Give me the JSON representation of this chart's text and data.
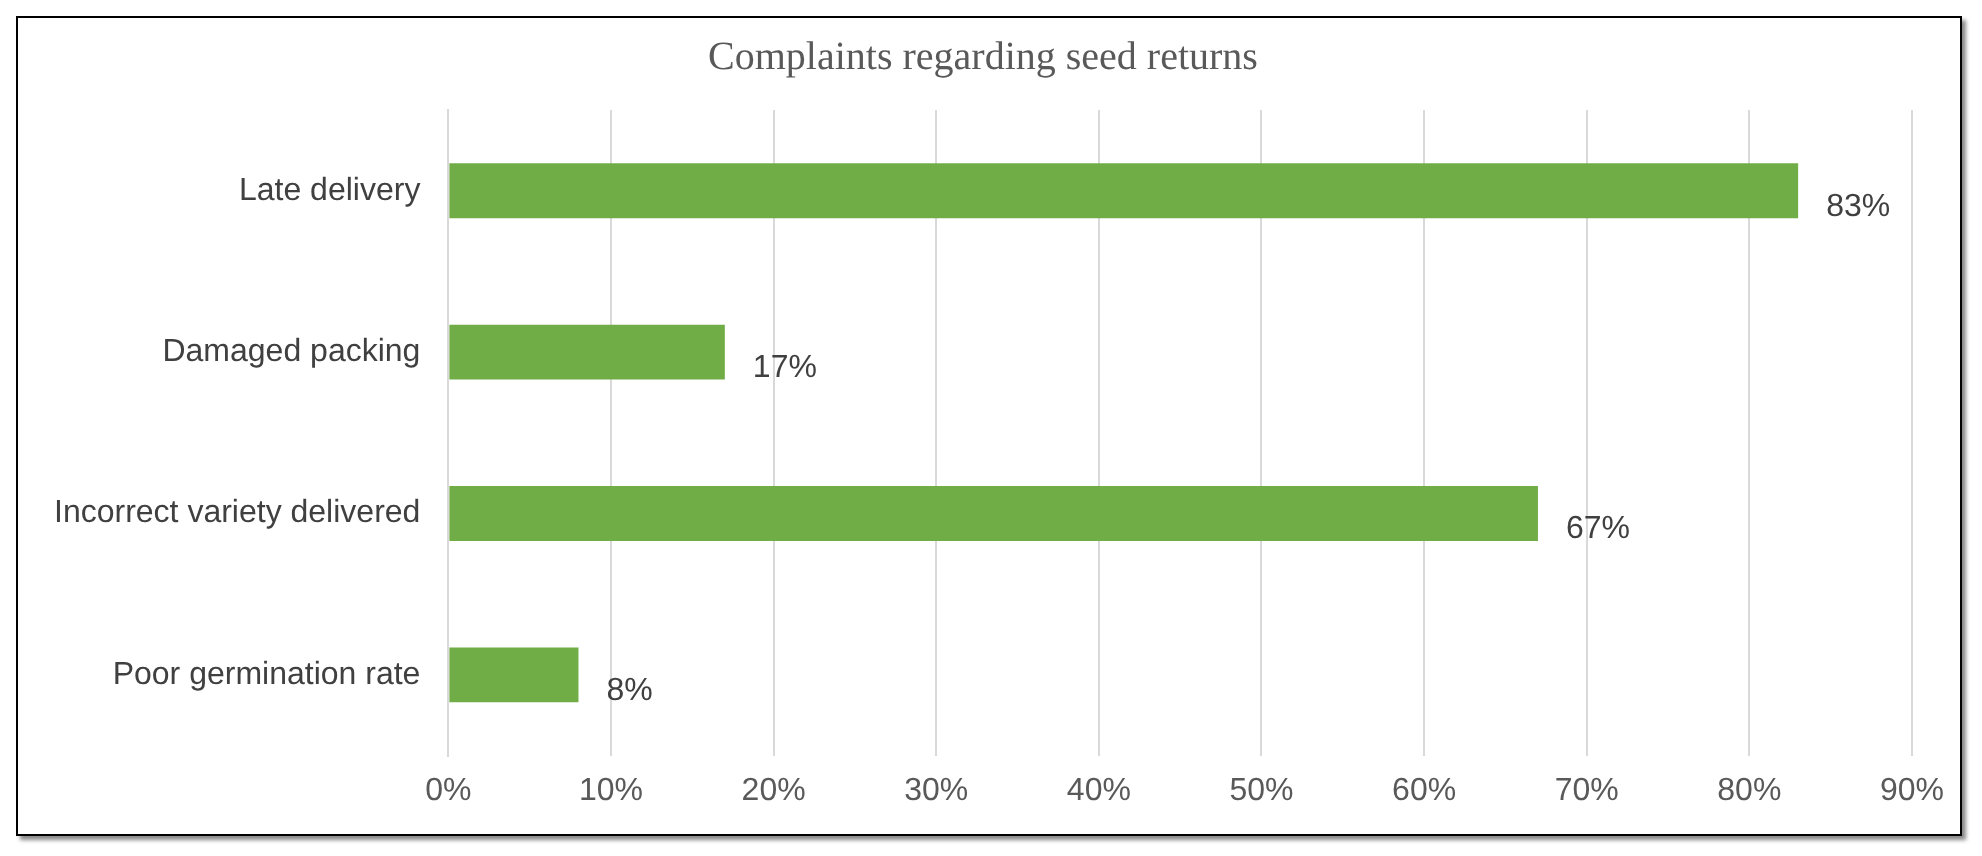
{
  "chart_data": {
    "type": "bar",
    "orientation": "horizontal",
    "title": "Complaints regarding seed returns",
    "categories": [
      "Late delivery",
      "Damaged packing",
      "Incorrect variety delivered",
      "Poor germination rate"
    ],
    "values": [
      83,
      17,
      67,
      8
    ],
    "color": "#70ad47",
    "value_labels": [
      "83%",
      "17%",
      "67%",
      "8%"
    ],
    "xlim": [
      0,
      90
    ],
    "xticks": [
      {
        "value": 0,
        "label": "0%"
      },
      {
        "value": 10,
        "label": "10%"
      },
      {
        "value": 20,
        "label": "20%"
      },
      {
        "value": 30,
        "label": "30%"
      },
      {
        "value": 40,
        "label": "40%"
      },
      {
        "value": 50,
        "label": "50%"
      },
      {
        "value": 60,
        "label": "60%"
      },
      {
        "value": 70,
        "label": "70%"
      },
      {
        "value": 80,
        "label": "80%"
      },
      {
        "value": 90,
        "label": "90%"
      }
    ],
    "grid": "x",
    "legend": false
  }
}
